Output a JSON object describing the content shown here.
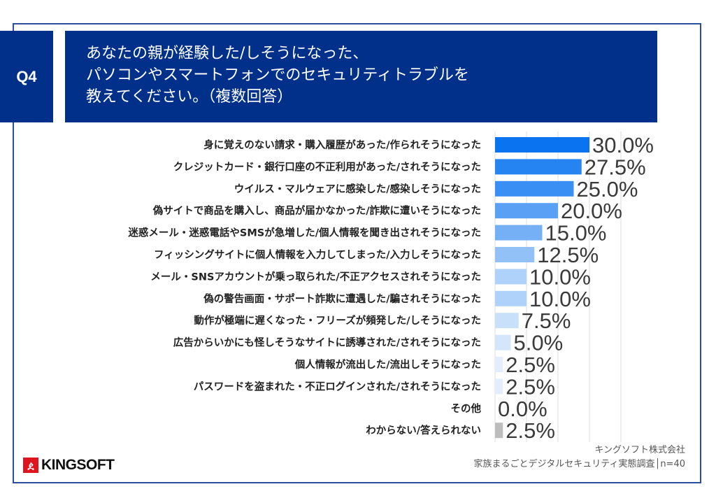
{
  "header": {
    "q_label": "Q4",
    "title_lines": [
      "あなたの親が経験した/しそうになった、",
      "パソコンやスマートフォンでのセキュリティトラブルを",
      "教えてください。（複数回答）"
    ],
    "color": "#00308a"
  },
  "chart_data": {
    "type": "bar",
    "orientation": "horizontal",
    "xlim": [
      0,
      40
    ],
    "grid": true,
    "categories": [
      "身に覚えのない請求・購入履歴があった/作られそうになった",
      "クレジットカード・銀行口座の不正利用があった/されそうになった",
      "ウイルス・マルウェアに感染した/感染しそうになった",
      "偽サイトで商品を購入し、商品が届かなかった/詐欺に遭いそうになった",
      "迷惑メール・迷惑電話やSMSが急増した/個人情報を聞き出されそうになった",
      "フィッシングサイトに個人情報を入力してしまった/入力しそうになった",
      "メール・SNSアカウントが乗っ取られた/不正アクセスされそうになった",
      "偽の警告画面・サポート詐欺に遭遇した/騙されそうになった",
      "動作が極端に遅くなった・フリーズが頻発した/しそうになった",
      "広告からいかにも怪しそうなサイトに誘導された/されそうになった",
      "個人情報が流出した/流出しそうになった",
      "パスワードを盗まれた・不正ログインされた/されそうになった",
      "その他",
      "わからない/答えられない"
    ],
    "values": [
      30.0,
      27.5,
      25.0,
      20.0,
      15.0,
      12.5,
      10.0,
      10.0,
      7.5,
      5.0,
      2.5,
      2.5,
      0.0,
      2.5
    ],
    "value_labels": [
      "30.0%",
      "27.5%",
      "25.0%",
      "20.0%",
      "15.0%",
      "12.5%",
      "10.0%",
      "10.0%",
      "7.5%",
      "5.0%",
      "2.5%",
      "2.5%",
      "0.0%",
      "2.5%"
    ],
    "colors": [
      "#0a74f0",
      "#2584f2",
      "#3a8ff4",
      "#5aa0f5",
      "#75b0f7",
      "#92c1f8",
      "#aed2fa",
      "#aed2fa",
      "#c9e0fb",
      "#d3e6fc",
      "#e2eefd",
      "#e2eefd",
      "#e8f1fd",
      "#bdbdbd"
    ]
  },
  "footer": {
    "company": "キングソフト株式会社",
    "survey": "家族まるごとデジタルセキュリティ実態調査│n=40",
    "logo_text": "KINGSOFT"
  }
}
